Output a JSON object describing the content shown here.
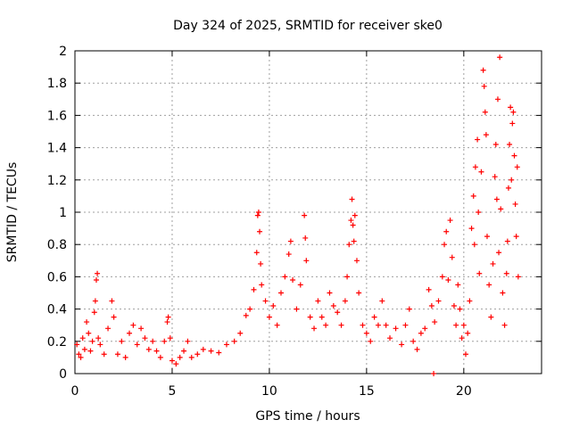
{
  "chart_data": {
    "type": "scatter",
    "title": "Day 324 of 2025, SRMTID for receiver ske0",
    "xlabel": "GPS time / hours",
    "ylabel": "SRMTID / TECUs",
    "xlim": [
      0,
      24
    ],
    "ylim": [
      0,
      2
    ],
    "xticks": [
      0,
      5,
      10,
      15,
      20
    ],
    "xtick_labels": [
      "0",
      "5",
      "10",
      "15",
      "20"
    ],
    "yticks": [
      0,
      0.2,
      0.4,
      0.6,
      0.8,
      1.0,
      1.2,
      1.4,
      1.6,
      1.8,
      2.0
    ],
    "ytick_labels": [
      "0",
      "0.2",
      "0.4",
      "0.6",
      "0.8",
      "1",
      "1.2",
      "1.4",
      "1.6",
      "1.8",
      "2"
    ],
    "grid": true,
    "marker": "+",
    "color": "#ff0000",
    "series": [
      {
        "name": "SRMTID",
        "points": [
          [
            0.1,
            0.18
          ],
          [
            0.2,
            0.12
          ],
          [
            0.3,
            0.1
          ],
          [
            0.4,
            0.22
          ],
          [
            0.5,
            0.15
          ],
          [
            0.6,
            0.32
          ],
          [
            0.7,
            0.25
          ],
          [
            0.8,
            0.14
          ],
          [
            0.9,
            0.2
          ],
          [
            1.0,
            0.38
          ],
          [
            1.05,
            0.45
          ],
          [
            1.1,
            0.58
          ],
          [
            1.15,
            0.62
          ],
          [
            1.2,
            0.22
          ],
          [
            1.3,
            0.18
          ],
          [
            1.5,
            0.12
          ],
          [
            1.7,
            0.28
          ],
          [
            1.9,
            0.45
          ],
          [
            2.0,
            0.35
          ],
          [
            2.2,
            0.12
          ],
          [
            2.4,
            0.2
          ],
          [
            2.6,
            0.1
          ],
          [
            2.8,
            0.25
          ],
          [
            3.0,
            0.3
          ],
          [
            3.2,
            0.18
          ],
          [
            3.4,
            0.28
          ],
          [
            3.6,
            0.22
          ],
          [
            3.8,
            0.15
          ],
          [
            4.0,
            0.2
          ],
          [
            4.2,
            0.14
          ],
          [
            4.4,
            0.1
          ],
          [
            4.6,
            0.2
          ],
          [
            4.75,
            0.32
          ],
          [
            4.8,
            0.35
          ],
          [
            4.9,
            0.22
          ],
          [
            5.0,
            0.08
          ],
          [
            5.2,
            0.06
          ],
          [
            5.4,
            0.1
          ],
          [
            5.6,
            0.14
          ],
          [
            5.8,
            0.2
          ],
          [
            6.0,
            0.1
          ],
          [
            6.3,
            0.12
          ],
          [
            6.6,
            0.15
          ],
          [
            7.0,
            0.14
          ],
          [
            7.4,
            0.13
          ],
          [
            7.8,
            0.18
          ],
          [
            8.2,
            0.2
          ],
          [
            8.5,
            0.25
          ],
          [
            8.8,
            0.36
          ],
          [
            9.0,
            0.4
          ],
          [
            9.2,
            0.52
          ],
          [
            9.35,
            0.75
          ],
          [
            9.4,
            0.98
          ],
          [
            9.45,
            1.0
          ],
          [
            9.5,
            0.88
          ],
          [
            9.55,
            0.68
          ],
          [
            9.6,
            0.55
          ],
          [
            9.8,
            0.45
          ],
          [
            10.0,
            0.35
          ],
          [
            10.2,
            0.42
          ],
          [
            10.4,
            0.3
          ],
          [
            10.6,
            0.5
          ],
          [
            10.8,
            0.6
          ],
          [
            11.0,
            0.74
          ],
          [
            11.1,
            0.82
          ],
          [
            11.2,
            0.58
          ],
          [
            11.4,
            0.4
          ],
          [
            11.6,
            0.55
          ],
          [
            11.8,
            0.98
          ],
          [
            11.85,
            0.84
          ],
          [
            11.9,
            0.7
          ],
          [
            12.1,
            0.35
          ],
          [
            12.3,
            0.28
          ],
          [
            12.5,
            0.45
          ],
          [
            12.7,
            0.35
          ],
          [
            12.9,
            0.3
          ],
          [
            13.1,
            0.5
          ],
          [
            13.3,
            0.42
          ],
          [
            13.5,
            0.38
          ],
          [
            13.7,
            0.3
          ],
          [
            13.9,
            0.45
          ],
          [
            14.0,
            0.6
          ],
          [
            14.1,
            0.8
          ],
          [
            14.2,
            0.95
          ],
          [
            14.25,
            1.08
          ],
          [
            14.3,
            0.92
          ],
          [
            14.35,
            0.82
          ],
          [
            14.4,
            0.98
          ],
          [
            14.5,
            0.7
          ],
          [
            14.6,
            0.5
          ],
          [
            14.8,
            0.3
          ],
          [
            15.0,
            0.25
          ],
          [
            15.2,
            0.2
          ],
          [
            15.4,
            0.35
          ],
          [
            15.6,
            0.3
          ],
          [
            15.8,
            0.45
          ],
          [
            16.0,
            0.3
          ],
          [
            16.2,
            0.22
          ],
          [
            16.5,
            0.28
          ],
          [
            16.8,
            0.18
          ],
          [
            17.0,
            0.3
          ],
          [
            17.2,
            0.4
          ],
          [
            17.4,
            0.2
          ],
          [
            17.6,
            0.15
          ],
          [
            17.8,
            0.25
          ],
          [
            18.0,
            0.28
          ],
          [
            18.2,
            0.52
          ],
          [
            18.35,
            0.42
          ],
          [
            18.45,
            0.0
          ],
          [
            18.5,
            0.32
          ],
          [
            18.7,
            0.45
          ],
          [
            18.9,
            0.6
          ],
          [
            19.0,
            0.8
          ],
          [
            19.1,
            0.88
          ],
          [
            19.2,
            0.58
          ],
          [
            19.3,
            0.95
          ],
          [
            19.4,
            0.72
          ],
          [
            19.5,
            0.42
          ],
          [
            19.6,
            0.3
          ],
          [
            19.7,
            0.55
          ],
          [
            19.8,
            0.4
          ],
          [
            19.9,
            0.22
          ],
          [
            20.0,
            0.3
          ],
          [
            20.1,
            0.12
          ],
          [
            20.2,
            0.25
          ],
          [
            20.3,
            0.45
          ],
          [
            20.4,
            0.9
          ],
          [
            20.5,
            1.1
          ],
          [
            20.55,
            0.8
          ],
          [
            20.6,
            1.28
          ],
          [
            20.7,
            1.45
          ],
          [
            20.75,
            1.0
          ],
          [
            20.8,
            0.62
          ],
          [
            20.9,
            1.25
          ],
          [
            21.0,
            1.88
          ],
          [
            21.05,
            1.78
          ],
          [
            21.1,
            1.62
          ],
          [
            21.15,
            1.48
          ],
          [
            21.2,
            0.85
          ],
          [
            21.3,
            0.55
          ],
          [
            21.4,
            0.35
          ],
          [
            21.5,
            0.68
          ],
          [
            21.6,
            1.22
          ],
          [
            21.65,
            1.42
          ],
          [
            21.7,
            1.08
          ],
          [
            21.75,
            1.7
          ],
          [
            21.8,
            0.75
          ],
          [
            21.85,
            1.96
          ],
          [
            21.9,
            1.02
          ],
          [
            22.0,
            0.5
          ],
          [
            22.1,
            0.3
          ],
          [
            22.2,
            0.62
          ],
          [
            22.25,
            0.82
          ],
          [
            22.3,
            1.15
          ],
          [
            22.35,
            1.42
          ],
          [
            22.4,
            1.65
          ],
          [
            22.45,
            1.2
          ],
          [
            22.5,
            1.55
          ],
          [
            22.55,
            1.62
          ],
          [
            22.6,
            1.35
          ],
          [
            22.65,
            1.05
          ],
          [
            22.7,
            0.85
          ],
          [
            22.75,
            1.28
          ],
          [
            22.8,
            0.6
          ]
        ]
      }
    ]
  }
}
